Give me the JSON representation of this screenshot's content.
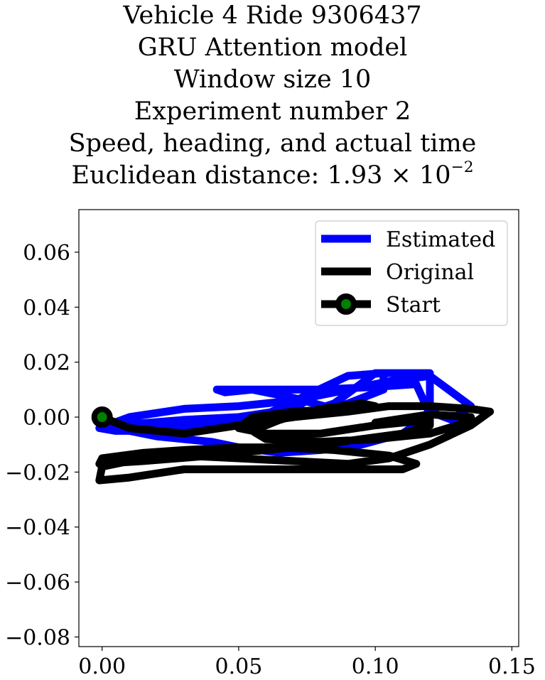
{
  "chart_data": {
    "type": "line",
    "title_lines": [
      "Vehicle 4 Ride 9306437",
      "GRU Attention model",
      "Window size 10",
      "Experiment number 2",
      "Speed, heading, and actual time"
    ],
    "title_distance_prefix": "Euclidean distance: ",
    "title_distance_mantissa": "1.93",
    "title_distance_times": " × 10",
    "title_distance_exponent": "−2",
    "xlim": [
      -0.0085,
      0.1525
    ],
    "ylim": [
      -0.0835,
      0.0755
    ],
    "x_ticks": [
      0.0,
      0.05,
      0.1,
      0.15
    ],
    "x_tick_labels": [
      "0.00",
      "0.05",
      "0.10",
      "0.15"
    ],
    "y_ticks": [
      0.06,
      0.04,
      0.02,
      0.0,
      -0.02,
      -0.04,
      -0.06,
      -0.08
    ],
    "y_tick_labels": [
      "0.06",
      "0.04",
      "0.02",
      "0.00",
      "−0.02",
      "−0.04",
      "−0.06",
      "−0.08"
    ],
    "grid": false,
    "legend_position": "top-right",
    "series": [
      {
        "name": "Estimated",
        "color": "#0000ff",
        "x": [
          -0.001,
          0.01,
          0.03,
          0.05,
          0.07,
          0.085,
          0.095,
          0.105,
          0.12,
          0.135,
          0.128,
          0.12,
          0.12,
          0.1,
          0.085,
          0.07,
          0.05,
          0.04,
          0.03,
          0.02,
          0.005,
          -0.001,
          0.02,
          0.04,
          0.06,
          0.075,
          0.09,
          0.103,
          0.103,
          0.085,
          0.07,
          0.055,
          0.045,
          0.042,
          0.06,
          0.08,
          0.1,
          0.115,
          0.12,
          0.11,
          0.095,
          0.08,
          0.065,
          0.05,
          0.04,
          0.03,
          0.02,
          0.01,
          0.005,
          0.03,
          0.05,
          0.07,
          0.075
        ],
        "y": [
          -0.004,
          0.0,
          0.003,
          0.004,
          0.006,
          0.009,
          0.011,
          0.013,
          0.015,
          0.004,
          -0.001,
          0.002,
          0.016,
          0.016,
          0.005,
          0.0,
          -0.002,
          -0.003,
          -0.004,
          -0.005,
          -0.005,
          -0.004,
          -0.003,
          -0.003,
          0.001,
          0.008,
          0.015,
          0.016,
          0.01,
          0.003,
          0.007,
          0.01,
          0.009,
          0.01,
          0.01,
          0.01,
          0.011,
          0.012,
          0.001,
          -0.006,
          -0.01,
          -0.012,
          -0.013,
          -0.011,
          -0.009,
          -0.008,
          -0.007,
          -0.005,
          -0.003,
          -0.001,
          0.0,
          0.003,
          0.006
        ]
      },
      {
        "name": "Original",
        "color": "#000000",
        "x": [
          0.0,
          0.01,
          0.03,
          0.05,
          0.07,
          0.09,
          0.105,
          0.12,
          0.135,
          0.142,
          0.135,
          0.12,
          0.105,
          0.09,
          0.07,
          0.05,
          0.03,
          0.015,
          0.0,
          -0.001,
          0.01,
          0.03,
          0.05,
          0.07,
          0.09,
          0.11,
          0.115,
          0.105,
          0.085,
          0.065,
          0.05,
          0.03,
          0.015,
          0.0,
          -0.001,
          0.015,
          0.04,
          0.06,
          0.08,
          0.095,
          0.11,
          0.12,
          0.12,
          0.1,
          0.08,
          0.06,
          0.05,
          0.055,
          0.07,
          0.09,
          0.1,
          0.095,
          0.08,
          0.065,
          0.055,
          0.06,
          0.08,
          0.1,
          0.12,
          0.13,
          0.135,
          0.12,
          0.1
        ],
        "y": [
          0.0,
          -0.004,
          -0.006,
          -0.003,
          0.0,
          0.002,
          0.004,
          0.004,
          0.003,
          0.002,
          -0.003,
          -0.01,
          -0.015,
          -0.017,
          -0.016,
          -0.015,
          -0.014,
          -0.015,
          -0.018,
          -0.023,
          -0.022,
          -0.019,
          -0.019,
          -0.019,
          -0.019,
          -0.019,
          -0.017,
          -0.014,
          -0.012,
          -0.011,
          -0.011,
          -0.012,
          -0.013,
          -0.015,
          -0.017,
          -0.016,
          -0.014,
          -0.012,
          -0.01,
          -0.008,
          -0.006,
          -0.003,
          -0.001,
          -0.003,
          -0.006,
          -0.006,
          -0.004,
          0.0,
          0.002,
          0.003,
          0.004,
          0.005,
          0.003,
          -0.001,
          -0.005,
          -0.008,
          -0.009,
          -0.008,
          -0.006,
          -0.003,
          0.0,
          0.001,
          -0.002
        ]
      }
    ],
    "start_marker": {
      "name": "Start",
      "x": 0.0,
      "y": 0.0,
      "edge_color": "#000000",
      "face_color": "#008000"
    }
  }
}
